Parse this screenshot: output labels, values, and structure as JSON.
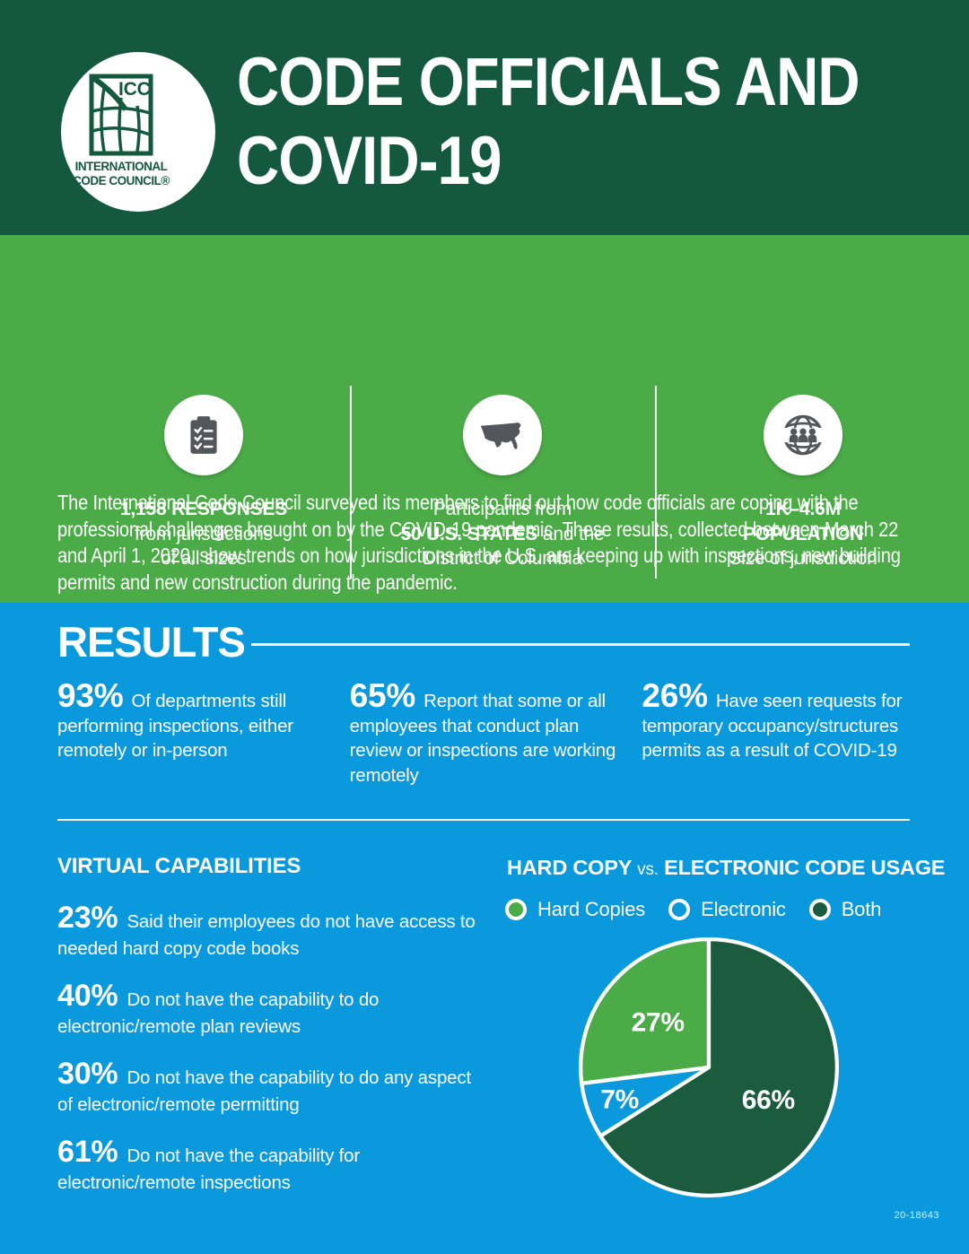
{
  "header": {
    "logo": {
      "abbr": "ICC",
      "name_line1": "INTERNATIONAL",
      "name_line2": "CODE COUNCIL®"
    },
    "title_line1": "CODE OFFICIALS AND",
    "title_line2": "COVID-19"
  },
  "intro": "The International Code Council surveyed its members to find out how code officials are coping with the professional challenges brought on by the COVID-19 pandemic. These results, collected between March 22 and April 1, 2020, show trends on how jurisdictions in the U.S. are keeping up with inspections, new building permits and new construction during the pandemic.",
  "survey_stats": {
    "responses": {
      "line1": "1,158 RESPONSES",
      "line2": "from jurisdictions",
      "line3": "of all sizes"
    },
    "states": {
      "line1": "Participants from",
      "line2_bold": "50 U.S. STATES",
      "line2_rest": " and the",
      "line3": "District of Columbia"
    },
    "population": {
      "line1": "1K–4.6M",
      "line2": "POPULATION",
      "line3": "Size of jurisdiction"
    }
  },
  "results": {
    "heading": "RESULTS",
    "items": [
      {
        "pct": "93%",
        "text": "Of departments still performing inspections, either remotely or in-person"
      },
      {
        "pct": "65%",
        "text": "Report that some or all employees that conduct plan review or inspections are working remotely"
      },
      {
        "pct": "26%",
        "text": "Have seen requests for temporary occupancy/structures permits as a result of COVID-19"
      }
    ]
  },
  "virtual_capabilities": {
    "heading": "VIRTUAL CAPABILITIES",
    "items": [
      {
        "pct": "23%",
        "text": "Said their employees do not have access to needed hard copy code books"
      },
      {
        "pct": "40%",
        "text": "Do not have the capability to do electronic/remote plan reviews"
      },
      {
        "pct": "30%",
        "text": "Do not have the capability to do any aspect of electronic/remote permitting"
      },
      {
        "pct": "61%",
        "text": "Do not have the capability for electronic/remote inspections"
      }
    ]
  },
  "code_usage": {
    "heading_part1": "HARD COPY",
    "heading_vs": "vs.",
    "heading_part2": "ELECTRONIC CODE USAGE"
  },
  "chart_data": {
    "type": "pie",
    "title": "HARD COPY vs. ELECTRONIC CODE USAGE",
    "labels": [
      "Hard Copies",
      "Electronic",
      "Both"
    ],
    "values": [
      27,
      7,
      66
    ],
    "data_labels": [
      "27%",
      "7%",
      "66%"
    ],
    "colors": [
      "#4BAC47",
      "#0999DC",
      "#1B5C3F"
    ],
    "start_angle_deg": 0,
    "direction": "counterclockwise-from-top",
    "legend_position": "top"
  },
  "footer": {
    "doc_number": "20-18643"
  },
  "colors": {
    "header_bg": "#14593F",
    "green_bg": "#4BAC47",
    "blue_bg": "#0999DC",
    "icon_gray": "#53565A",
    "text": "#FFFFFF"
  }
}
